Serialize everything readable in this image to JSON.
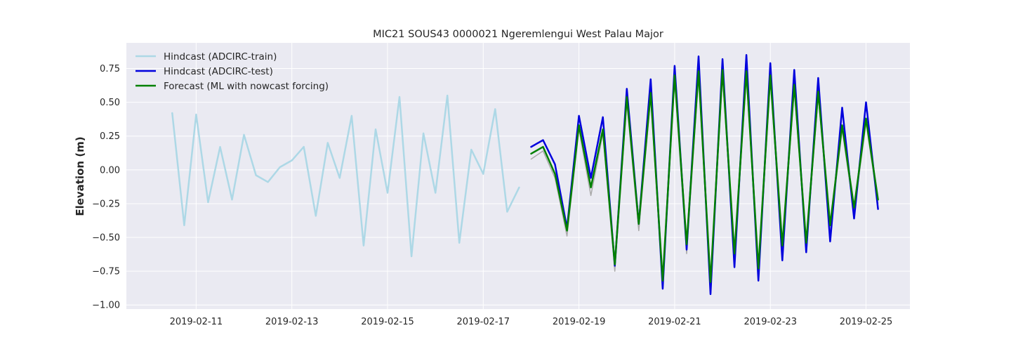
{
  "chart_data": {
    "type": "line",
    "title": "MIC21 SOUS43 0000021 Ngeremlengui West Palau Major",
    "xlabel": "",
    "ylabel": "Elevation (m)",
    "xlim": [
      "2019-02-09T13:00",
      "2019-02-25T22:00"
    ],
    "ylim": [
      -1.03,
      0.94
    ],
    "x_ticks": [
      "2019-02-11",
      "2019-02-13",
      "2019-02-15",
      "2019-02-17",
      "2019-02-19",
      "2019-02-21",
      "2019-02-23",
      "2019-02-25"
    ],
    "y_ticks": [
      -1.0,
      -0.75,
      -0.5,
      -0.25,
      0.0,
      0.25,
      0.5,
      0.75
    ],
    "y_tick_labels": [
      "−1.00",
      "−0.75",
      "−0.50",
      "−0.25",
      "0.00",
      "0.25",
      "0.50",
      "0.75"
    ],
    "grid": true,
    "legend_position": "top-left",
    "colors": {
      "background": "#eaeaf2",
      "grid": "#ffffff"
    },
    "series": [
      {
        "name": "Hindcast (ADCIRC-train)",
        "color": "#add8e6",
        "x": [
          "2019-02-10T12:00",
          "2019-02-10T18:00",
          "2019-02-11T00:00",
          "2019-02-11T06:00",
          "2019-02-11T12:00",
          "2019-02-11T18:00",
          "2019-02-12T00:00",
          "2019-02-12T06:00",
          "2019-02-12T12:00",
          "2019-02-12T18:00",
          "2019-02-13T00:00",
          "2019-02-13T06:00",
          "2019-02-13T12:00",
          "2019-02-13T18:00",
          "2019-02-14T00:00",
          "2019-02-14T06:00",
          "2019-02-14T12:00",
          "2019-02-14T18:00",
          "2019-02-15T00:00",
          "2019-02-15T06:00",
          "2019-02-15T12:00",
          "2019-02-15T18:00",
          "2019-02-16T00:00",
          "2019-02-16T06:00",
          "2019-02-16T12:00",
          "2019-02-16T18:00",
          "2019-02-17T00:00",
          "2019-02-17T06:00",
          "2019-02-17T12:00",
          "2019-02-17T18:00"
        ],
        "values": [
          0.42,
          -0.41,
          0.41,
          -0.24,
          0.17,
          -0.22,
          0.26,
          -0.04,
          -0.09,
          0.02,
          0.07,
          0.17,
          -0.34,
          0.2,
          -0.06,
          0.4,
          -0.56,
          0.3,
          -0.17,
          0.54,
          -0.64,
          0.27,
          -0.17,
          0.55,
          -0.54,
          0.15,
          -0.03,
          0.45,
          -0.31,
          -0.13
        ]
      },
      {
        "name": "Hindcast (ADCIRC-test)",
        "color": "#0000dd",
        "x": [
          "2019-02-18T00:00",
          "2019-02-18T06:00",
          "2019-02-18T12:00",
          "2019-02-18T18:00",
          "2019-02-19T00:00",
          "2019-02-19T06:00",
          "2019-02-19T12:00",
          "2019-02-19T18:00",
          "2019-02-20T00:00",
          "2019-02-20T06:00",
          "2019-02-20T12:00",
          "2019-02-20T18:00",
          "2019-02-21T00:00",
          "2019-02-21T06:00",
          "2019-02-21T12:00",
          "2019-02-21T18:00",
          "2019-02-22T00:00",
          "2019-02-22T06:00",
          "2019-02-22T12:00",
          "2019-02-22T18:00",
          "2019-02-23T00:00",
          "2019-02-23T06:00",
          "2019-02-23T12:00",
          "2019-02-23T18:00",
          "2019-02-24T00:00",
          "2019-02-24T06:00",
          "2019-02-24T12:00",
          "2019-02-24T18:00",
          "2019-02-25T00:00",
          "2019-02-25T06:00"
        ],
        "values": [
          0.17,
          0.22,
          0.04,
          -0.43,
          0.4,
          -0.06,
          0.39,
          -0.71,
          0.6,
          -0.4,
          0.67,
          -0.88,
          0.77,
          -0.59,
          0.84,
          -0.92,
          0.82,
          -0.72,
          0.85,
          -0.82,
          0.79,
          -0.67,
          0.74,
          -0.61,
          0.68,
          -0.53,
          0.46,
          -0.36,
          0.5,
          -0.29
        ]
      },
      {
        "name": "Forecast (ML with nowcast forcing)",
        "color": "#008000",
        "x": [
          "2019-02-18T00:00",
          "2019-02-18T06:00",
          "2019-02-18T12:00",
          "2019-02-18T18:00",
          "2019-02-19T00:00",
          "2019-02-19T06:00",
          "2019-02-19T12:00",
          "2019-02-19T18:00",
          "2019-02-20T00:00",
          "2019-02-20T06:00",
          "2019-02-20T12:00",
          "2019-02-20T18:00",
          "2019-02-21T00:00",
          "2019-02-21T06:00",
          "2019-02-21T12:00",
          "2019-02-21T18:00",
          "2019-02-22T00:00",
          "2019-02-22T06:00",
          "2019-02-22T12:00",
          "2019-02-22T18:00",
          "2019-02-23T00:00",
          "2019-02-23T06:00",
          "2019-02-23T12:00",
          "2019-02-23T18:00",
          "2019-02-24T00:00",
          "2019-02-24T06:00",
          "2019-02-24T12:00",
          "2019-02-24T18:00",
          "2019-02-25T00:00",
          "2019-02-25T06:00"
        ],
        "values": [
          0.12,
          0.17,
          -0.03,
          -0.45,
          0.33,
          -0.13,
          0.3,
          -0.7,
          0.54,
          -0.4,
          0.57,
          -0.82,
          0.7,
          -0.55,
          0.73,
          -0.83,
          0.74,
          -0.62,
          0.73,
          -0.73,
          0.7,
          -0.56,
          0.63,
          -0.54,
          0.58,
          -0.41,
          0.33,
          -0.28,
          0.38,
          -0.22
        ]
      },
      {
        "name": "",
        "color": "#a9a9a9",
        "x": [
          "2019-02-18T00:00",
          "2019-02-18T06:00",
          "2019-02-18T12:00",
          "2019-02-18T18:00",
          "2019-02-19T00:00",
          "2019-02-19T06:00",
          "2019-02-19T12:00",
          "2019-02-19T18:00",
          "2019-02-20T00:00",
          "2019-02-20T06:00",
          "2019-02-20T12:00",
          "2019-02-20T18:00",
          "2019-02-21T00:00",
          "2019-02-21T06:00",
          "2019-02-21T12:00",
          "2019-02-21T18:00",
          "2019-02-22T00:00",
          "2019-02-22T06:00",
          "2019-02-22T12:00",
          "2019-02-22T18:00",
          "2019-02-23T00:00",
          "2019-02-23T06:00",
          "2019-02-23T12:00",
          "2019-02-23T18:00",
          "2019-02-24T00:00",
          "2019-02-24T06:00",
          "2019-02-24T12:00",
          "2019-02-24T18:00",
          "2019-02-25T00:00",
          "2019-02-25T06:00"
        ],
        "values": [
          0.08,
          0.14,
          -0.06,
          -0.49,
          0.3,
          -0.19,
          0.27,
          -0.75,
          0.5,
          -0.45,
          0.54,
          -0.86,
          0.66,
          -0.62,
          0.7,
          -0.87,
          0.7,
          -0.66,
          0.7,
          -0.77,
          0.66,
          -0.6,
          0.6,
          -0.58,
          0.55,
          -0.45,
          0.3,
          -0.32,
          0.35,
          -0.25
        ]
      }
    ]
  }
}
